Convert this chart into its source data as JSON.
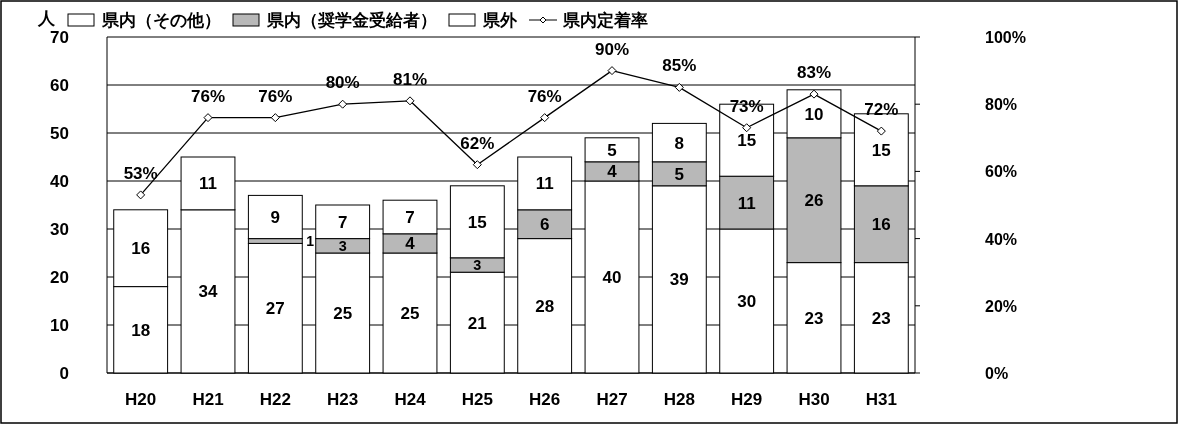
{
  "chart_data": {
    "type": "bar",
    "stacked": true,
    "ylabel": "人",
    "categories": [
      "H20",
      "H21",
      "H22",
      "H23",
      "H24",
      "H25",
      "H26",
      "H27",
      "H28",
      "H29",
      "H30",
      "H31"
    ],
    "series": [
      {
        "name": "県内（その他）",
        "color": "#ffffff",
        "values": [
          18,
          34,
          27,
          25,
          25,
          21,
          28,
          40,
          39,
          30,
          23,
          23
        ]
      },
      {
        "name": "県内（奨学金受給者）",
        "color": "#b8b8b8",
        "values": [
          null,
          null,
          1,
          3,
          4,
          3,
          6,
          4,
          5,
          11,
          26,
          16
        ]
      },
      {
        "name": "県外",
        "color": "#ffffff",
        "values": [
          16,
          11,
          9,
          7,
          7,
          15,
          11,
          5,
          8,
          15,
          10,
          15
        ]
      },
      {
        "name": "県内定着率",
        "type": "line",
        "axis": "y2",
        "color": "#000000",
        "marker": "diamond",
        "values": [
          53,
          76,
          76,
          80,
          81,
          62,
          76,
          90,
          85,
          73,
          83,
          72
        ],
        "value_labels": [
          "53%",
          "76%",
          "76%",
          "80%",
          "81%",
          "62%",
          "76%",
          "90%",
          "85%",
          "73%",
          "83%",
          "72%"
        ]
      }
    ],
    "ylim": [
      0,
      70
    ],
    "yticks": [
      0,
      10,
      20,
      30,
      40,
      50,
      60,
      70
    ],
    "y2lim": [
      0,
      100
    ],
    "y2ticks": [
      {
        "value": 0,
        "label": "0%"
      },
      {
        "value": 20,
        "label": "20%"
      },
      {
        "value": 40,
        "label": "40%"
      },
      {
        "value": 60,
        "label": "60%"
      },
      {
        "value": 80,
        "label": "80%"
      },
      {
        "value": 100,
        "label": "100%"
      }
    ],
    "grid": "y",
    "legend": "top",
    "data_labels": true
  }
}
